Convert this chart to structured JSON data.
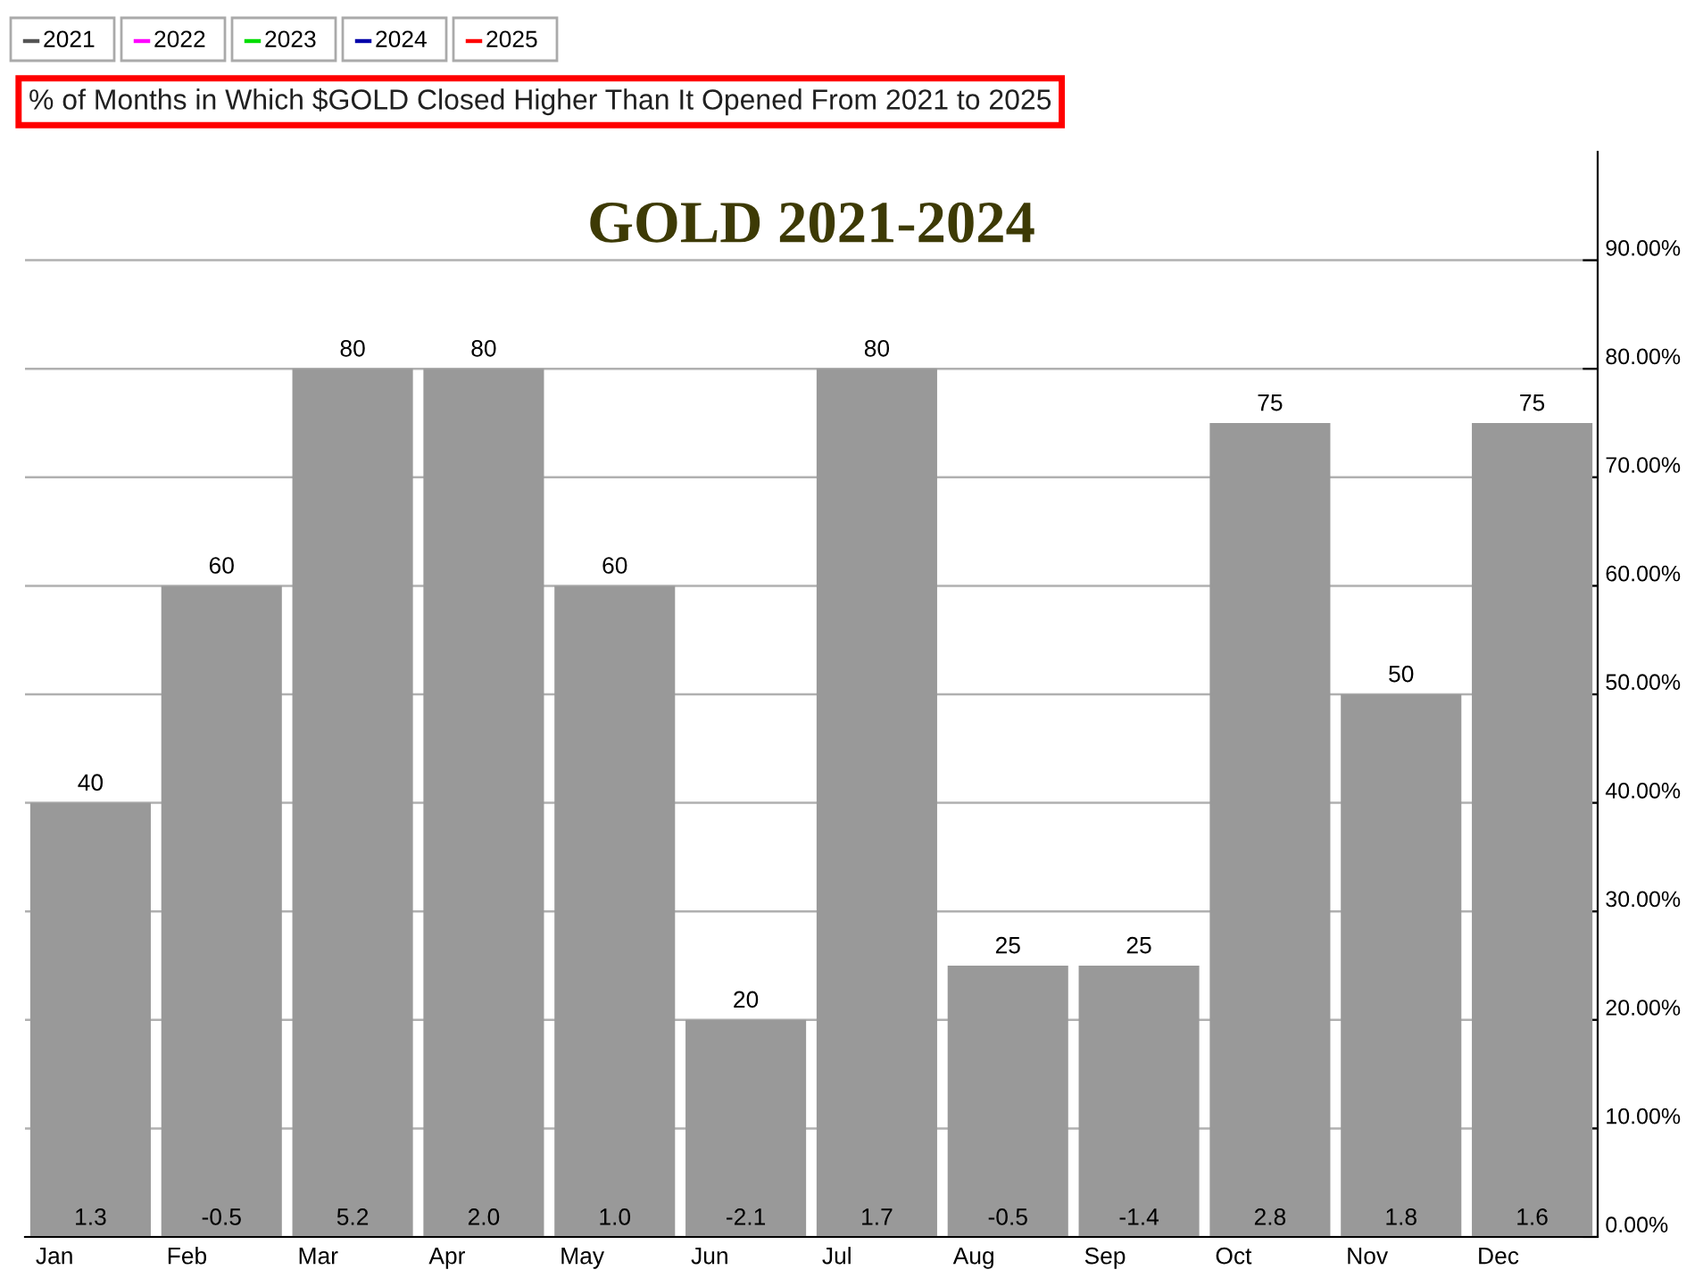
{
  "chart_data": {
    "type": "bar",
    "title": "GOLD 2021-2024",
    "subtitle": "% of Months in Which $GOLD Closed Higher Than It Opened From 2021 to 2025",
    "categories": [
      "Jan",
      "Feb",
      "Mar",
      "Apr",
      "May",
      "Jun",
      "Jul",
      "Aug",
      "Sep",
      "Oct",
      "Nov",
      "Dec"
    ],
    "values": [
      40,
      60,
      80,
      80,
      60,
      20,
      80,
      25,
      25,
      75,
      50,
      75
    ],
    "color": "#999999",
    "data_labels": true,
    "ylim": [
      0,
      100
    ],
    "yticks": [
      {
        "value": 0,
        "label": "0.00%"
      },
      {
        "value": 10,
        "label": "10.00%"
      },
      {
        "value": 20,
        "label": "20.00%"
      },
      {
        "value": 30,
        "label": "30.00%"
      },
      {
        "value": 40,
        "label": "40.00%"
      },
      {
        "value": 50,
        "label": "50.00%"
      },
      {
        "value": 60,
        "label": "60.00%"
      },
      {
        "value": 70,
        "label": "70.00%"
      },
      {
        "value": 80,
        "label": "80.00%"
      },
      {
        "value": 90,
        "label": "90.00%"
      }
    ],
    "grid": "y",
    "annotations": [
      "2021",
      "2022",
      "2023",
      "2024",
      "2025",
      {
        "text": "1.3",
        "x": "Jan",
        "y": 0
      },
      {
        "text": "-0.5",
        "x": "Feb",
        "y": 0
      },
      {
        "text": "5.2",
        "x": "Mar",
        "y": 0
      },
      {
        "text": "2.0",
        "x": "Apr",
        "y": 0
      },
      {
        "text": "1.0",
        "x": "May",
        "y": 0
      },
      {
        "text": "-2.1",
        "x": "Jun",
        "y": 0
      },
      {
        "text": "1.7",
        "x": "Jul",
        "y": 0
      },
      {
        "text": "-0.5",
        "x": "Aug",
        "y": 0
      },
      {
        "text": "-1.4",
        "x": "Sep",
        "y": 0
      },
      {
        "text": "2.8",
        "x": "Oct",
        "y": 0
      },
      {
        "text": "1.8",
        "x": "Nov",
        "y": 0
      },
      {
        "text": "1.6",
        "x": "Dec",
        "y": 0
      }
    ]
  }
}
